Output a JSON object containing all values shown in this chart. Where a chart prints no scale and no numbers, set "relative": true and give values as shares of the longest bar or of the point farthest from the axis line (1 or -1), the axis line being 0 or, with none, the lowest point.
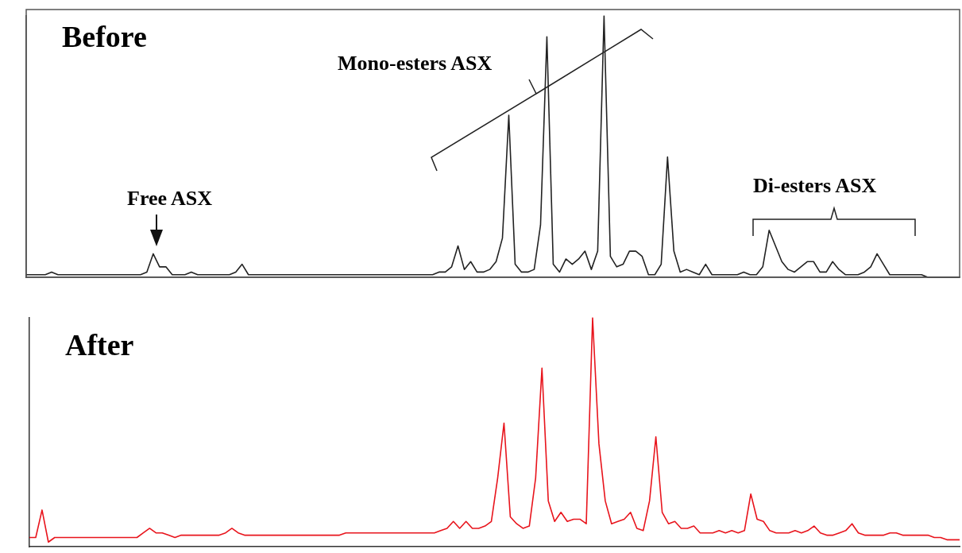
{
  "chart_data": [
    {
      "type": "line",
      "relative": true,
      "grid": false,
      "legend": false,
      "marker": "none",
      "line_style": "solid",
      "annotations": [
        "Before",
        "Mono-esters ASX",
        "Free ASX",
        "Di-esters ASX"
      ],
      "categories": [
        null,
        null,
        null,
        null,
        null,
        null,
        null,
        null,
        null,
        null,
        null,
        null,
        null,
        null,
        null,
        null,
        null,
        null,
        null,
        null,
        null,
        null,
        null,
        null,
        null,
        null,
        null,
        null,
        null,
        null,
        null,
        null,
        null,
        null,
        null,
        null,
        null,
        null,
        null,
        null,
        null,
        null,
        null,
        null,
        null,
        null,
        null,
        null,
        null,
        null,
        null,
        null,
        null,
        null,
        null,
        null,
        null,
        null,
        null,
        null,
        null,
        null,
        null,
        null,
        null,
        null,
        null,
        null,
        null,
        null,
        null,
        null,
        null,
        null,
        null,
        null,
        null,
        null,
        null,
        null,
        null,
        null,
        null,
        null,
        null,
        null,
        null,
        null,
        null,
        null,
        null,
        null,
        null,
        null,
        null,
        null,
        null,
        null,
        null,
        null,
        null,
        null,
        null,
        null,
        null,
        null,
        null,
        null,
        null,
        null,
        null,
        null,
        null,
        null,
        null,
        null,
        null,
        null,
        null,
        null,
        null,
        null,
        null,
        null,
        null,
        null,
        null,
        null,
        null,
        null,
        null,
        null,
        null,
        null,
        null,
        null,
        null,
        null,
        null,
        null,
        null,
        null,
        null,
        null,
        null,
        null,
        null,
        null
      ],
      "series": [
        {
          "color": "#222222",
          "values": [
            0.01,
            0.01,
            0.01,
            0.01,
            0.02,
            0.01,
            0.01,
            0.01,
            0.01,
            0.01,
            0.01,
            0.01,
            0.01,
            0.01,
            0.01,
            0.01,
            0.01,
            0.01,
            0.01,
            0.02,
            0.09,
            0.04,
            0.04,
            0.01,
            0.01,
            0.01,
            0.02,
            0.01,
            0.01,
            0.01,
            0.01,
            0.01,
            0.01,
            0.02,
            0.05,
            0.01,
            0.01,
            0.01,
            0.01,
            0.01,
            0.01,
            0.01,
            0.01,
            0.01,
            0.01,
            0.01,
            0.01,
            0.01,
            0.01,
            0.01,
            0.01,
            0.01,
            0.01,
            0.01,
            0.01,
            0.01,
            0.01,
            0.01,
            0.01,
            0.01,
            0.01,
            0.01,
            0.01,
            0.01,
            0.01,
            0.02,
            0.02,
            0.04,
            0.12,
            0.03,
            0.06,
            0.02,
            0.02,
            0.03,
            0.06,
            0.15,
            0.62,
            0.05,
            0.02,
            0.02,
            0.03,
            0.2,
            0.92,
            0.05,
            0.02,
            0.07,
            0.05,
            0.07,
            0.1,
            0.03,
            0.1,
            1,
            0.08,
            0.04,
            0.05,
            0.1,
            0.1,
            0.08,
            0.01,
            0.01,
            0.05,
            0.46,
            0.1,
            0.02,
            0.03,
            0.02,
            0.01,
            0.05,
            0.01,
            0.01,
            0.01,
            0.01,
            0.01,
            0.02,
            0.01,
            0.01,
            0.04,
            0.18,
            0.12,
            0.06,
            0.03,
            0.02,
            0.04,
            0.06,
            0.06,
            0.02,
            0.02,
            0.06,
            0.03,
            0.01,
            0.01,
            0.01,
            0.02,
            0.04,
            0.09,
            0.05,
            0.01,
            0.01,
            0.01,
            0.01,
            0.01,
            0.01,
            0,
            0,
            0,
            0,
            0,
            0
          ]
        }
      ]
    },
    {
      "type": "line",
      "relative": true,
      "grid": false,
      "legend": false,
      "marker": "none",
      "line_style": "solid",
      "annotations": [
        "After"
      ],
      "categories": [
        null,
        null,
        null,
        null,
        null,
        null,
        null,
        null,
        null,
        null,
        null,
        null,
        null,
        null,
        null,
        null,
        null,
        null,
        null,
        null,
        null,
        null,
        null,
        null,
        null,
        null,
        null,
        null,
        null,
        null,
        null,
        null,
        null,
        null,
        null,
        null,
        null,
        null,
        null,
        null,
        null,
        null,
        null,
        null,
        null,
        null,
        null,
        null,
        null,
        null,
        null,
        null,
        null,
        null,
        null,
        null,
        null,
        null,
        null,
        null,
        null,
        null,
        null,
        null,
        null,
        null,
        null,
        null,
        null,
        null,
        null,
        null,
        null,
        null,
        null,
        null,
        null,
        null,
        null,
        null,
        null,
        null,
        null,
        null,
        null,
        null,
        null,
        null,
        null,
        null,
        null,
        null,
        null,
        null,
        null,
        null,
        null,
        null,
        null,
        null,
        null,
        null,
        null,
        null,
        null,
        null,
        null,
        null,
        null,
        null,
        null,
        null,
        null,
        null,
        null,
        null,
        null,
        null,
        null,
        null,
        null,
        null,
        null,
        null,
        null,
        null,
        null,
        null,
        null,
        null,
        null,
        null,
        null,
        null,
        null,
        null,
        null,
        null,
        null,
        null,
        null,
        null,
        null,
        null,
        null,
        null,
        null,
        null
      ],
      "series": [
        {
          "color": "#e8141c",
          "values": [
            0.04,
            0.04,
            0.16,
            0.02,
            0.04,
            0.04,
            0.04,
            0.04,
            0.04,
            0.04,
            0.04,
            0.04,
            0.04,
            0.04,
            0.04,
            0.04,
            0.04,
            0.04,
            0.06,
            0.08,
            0.06,
            0.06,
            0.05,
            0.04,
            0.05,
            0.05,
            0.05,
            0.05,
            0.05,
            0.05,
            0.05,
            0.06,
            0.08,
            0.06,
            0.05,
            0.05,
            0.05,
            0.05,
            0.05,
            0.05,
            0.05,
            0.05,
            0.05,
            0.05,
            0.05,
            0.05,
            0.05,
            0.05,
            0.05,
            0.05,
            0.06,
            0.06,
            0.06,
            0.06,
            0.06,
            0.06,
            0.06,
            0.06,
            0.06,
            0.06,
            0.06,
            0.06,
            0.06,
            0.06,
            0.06,
            0.07,
            0.08,
            0.11,
            0.08,
            0.11,
            0.08,
            0.08,
            0.09,
            0.11,
            0.3,
            0.54,
            0.13,
            0.1,
            0.08,
            0.09,
            0.3,
            0.78,
            0.2,
            0.11,
            0.15,
            0.11,
            0.12,
            0.12,
            0.1,
            1,
            0.45,
            0.2,
            0.1,
            0.11,
            0.12,
            0.15,
            0.08,
            0.07,
            0.2,
            0.48,
            0.15,
            0.1,
            0.11,
            0.08,
            0.08,
            0.09,
            0.06,
            0.06,
            0.06,
            0.07,
            0.06,
            0.07,
            0.06,
            0.07,
            0.23,
            0.12,
            0.11,
            0.07,
            0.06,
            0.06,
            0.06,
            0.07,
            0.06,
            0.07,
            0.09,
            0.06,
            0.05,
            0.05,
            0.06,
            0.07,
            0.1,
            0.06,
            0.05,
            0.05,
            0.05,
            0.05,
            0.06,
            0.06,
            0.05,
            0.05,
            0.05,
            0.05,
            0.05,
            0.04,
            0.04,
            0.03,
            0.03,
            0.03
          ]
        }
      ]
    }
  ]
}
